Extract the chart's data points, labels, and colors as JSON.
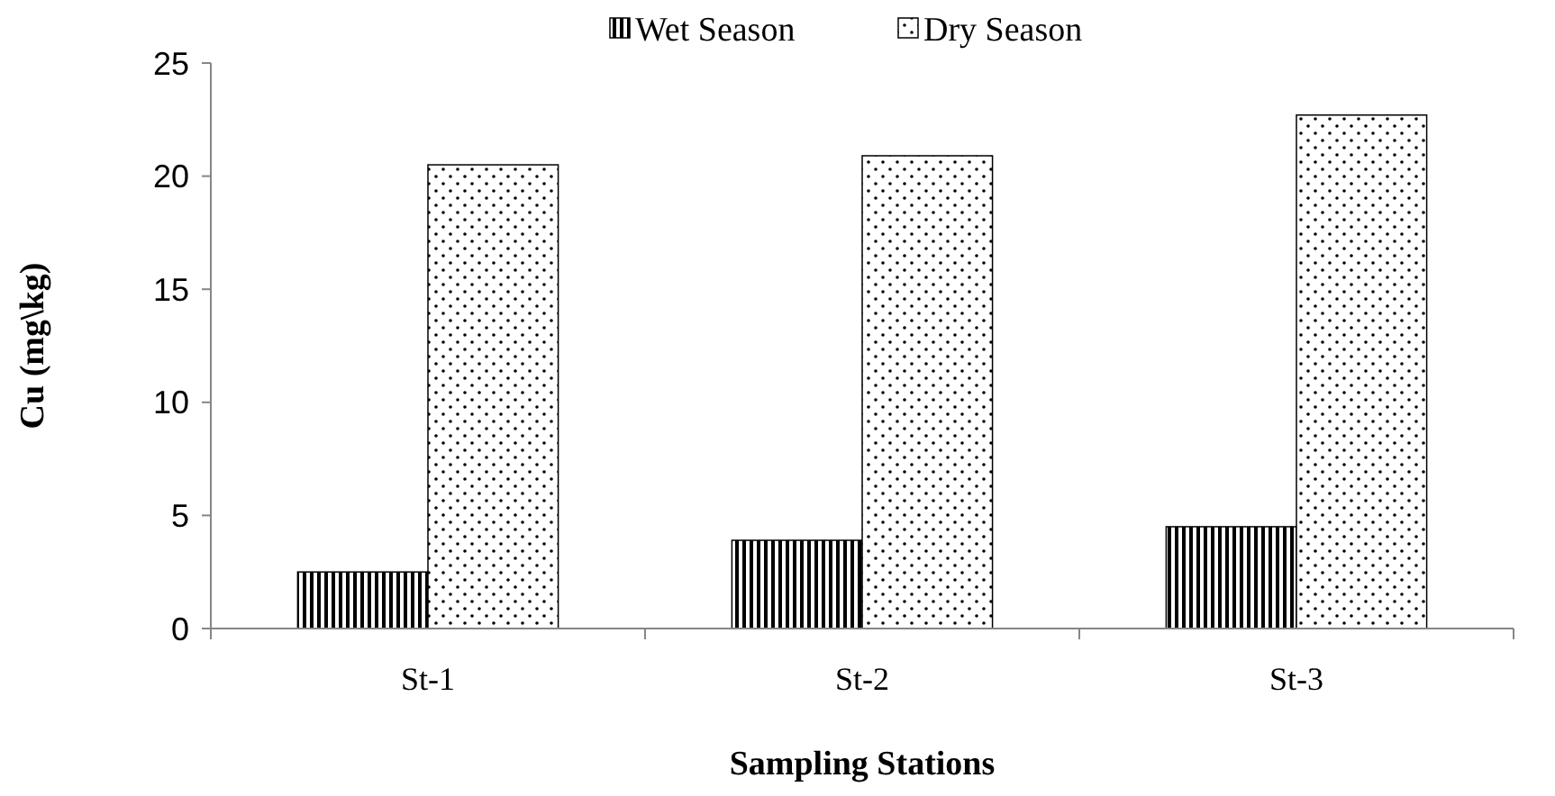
{
  "chart_data": {
    "type": "bar",
    "xlabel": "Sampling Stations",
    "ylabel": "Cu (mg\\kg)",
    "categories": [
      "St-1",
      "St-2",
      "St-3"
    ],
    "series": [
      {
        "name": "Wet Season",
        "color": "#000000",
        "values": [
          2.5,
          3.9,
          4.5
        ]
      },
      {
        "name": "Dry Season",
        "color": "#000000",
        "values": [
          20.5,
          20.9,
          22.7
        ]
      }
    ],
    "ylim": [
      0,
      25
    ],
    "yticks": [
      0,
      5,
      10,
      15,
      20,
      25
    ],
    "grid": false,
    "legend": "top"
  }
}
